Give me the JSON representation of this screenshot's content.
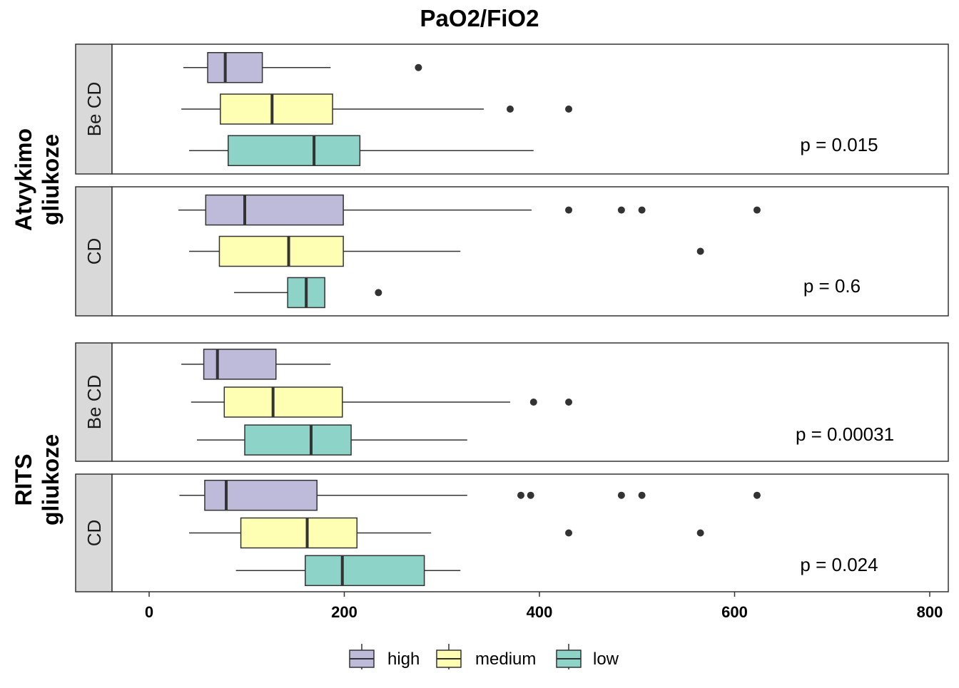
{
  "chart_data": {
    "type": "boxplot",
    "title": "PaO2/FiO2",
    "xlim": [
      -75,
      815
    ],
    "x_ticks": [
      "0",
      "200",
      "400",
      "600",
      "800"
    ],
    "x_tick_values": [
      0,
      200,
      400,
      600,
      800
    ],
    "legend_position": "bottom",
    "series": [
      {
        "name": "high",
        "color": "#bebada"
      },
      {
        "name": "medium",
        "color": "#ffffb3"
      },
      {
        "name": "low",
        "color": "#8dd3c7"
      }
    ],
    "groups": [
      {
        "label_line1": "Atvykimo",
        "label_line2": "gliukoze",
        "panels": [
          {
            "strip": "Be CD",
            "pvalue": "p = 0.015",
            "boxes": [
              {
                "series": "high",
                "whisker_low": 35,
                "q1": 60,
                "median": 78,
                "q3": 116,
                "whisker_high": 186,
                "outliers": [
                  276
                ]
              },
              {
                "series": "medium",
                "whisker_low": 33,
                "q1": 73,
                "median": 126,
                "q3": 188,
                "whisker_high": 343,
                "outliers": [
                  370,
                  430
                ]
              },
              {
                "series": "low",
                "whisker_low": 41,
                "q1": 81,
                "median": 169,
                "q3": 216,
                "whisker_high": 394,
                "outliers": []
              }
            ]
          },
          {
            "strip": "CD",
            "pvalue": "p = 0.6",
            "boxes": [
              {
                "series": "high",
                "whisker_low": 30,
                "q1": 58,
                "median": 98,
                "q3": 199,
                "whisker_high": 392,
                "outliers": [
                  430,
                  484,
                  505,
                  623
                ]
              },
              {
                "series": "medium",
                "whisker_low": 41,
                "q1": 72,
                "median": 143,
                "q3": 199,
                "whisker_high": 319,
                "outliers": [
                  565
                ]
              },
              {
                "series": "low",
                "whisker_low": 87,
                "q1": 142,
                "median": 161,
                "q3": 180,
                "whisker_high": 180,
                "outliers": [
                  235
                ]
              }
            ]
          }
        ]
      },
      {
        "label_line1": "RITS",
        "label_line2": "gliukoze",
        "panels": [
          {
            "strip": "Be CD",
            "pvalue": "p = 0.00031",
            "boxes": [
              {
                "series": "high",
                "whisker_low": 33,
                "q1": 56,
                "median": 70,
                "q3": 130,
                "whisker_high": 186,
                "outliers": []
              },
              {
                "series": "medium",
                "whisker_low": 43,
                "q1": 77,
                "median": 127,
                "q3": 198,
                "whisker_high": 370,
                "outliers": [
                  394,
                  430
                ]
              },
              {
                "series": "low",
                "whisker_low": 49,
                "q1": 98,
                "median": 166,
                "q3": 207,
                "whisker_high": 326,
                "outliers": []
              }
            ]
          },
          {
            "strip": "CD",
            "pvalue": "p = 0.024",
            "boxes": [
              {
                "series": "high",
                "whisker_low": 31,
                "q1": 57,
                "median": 79,
                "q3": 172,
                "whisker_high": 326,
                "outliers": [
                  381,
                  391,
                  484,
                  505,
                  623
                ]
              },
              {
                "series": "medium",
                "whisker_low": 41,
                "q1": 94,
                "median": 162,
                "q3": 213,
                "whisker_high": 289,
                "outliers": [
                  430,
                  565
                ]
              },
              {
                "series": "low",
                "whisker_low": 89,
                "q1": 160,
                "median": 198,
                "q3": 282,
                "whisker_high": 319,
                "outliers": []
              }
            ]
          }
        ]
      }
    ]
  }
}
